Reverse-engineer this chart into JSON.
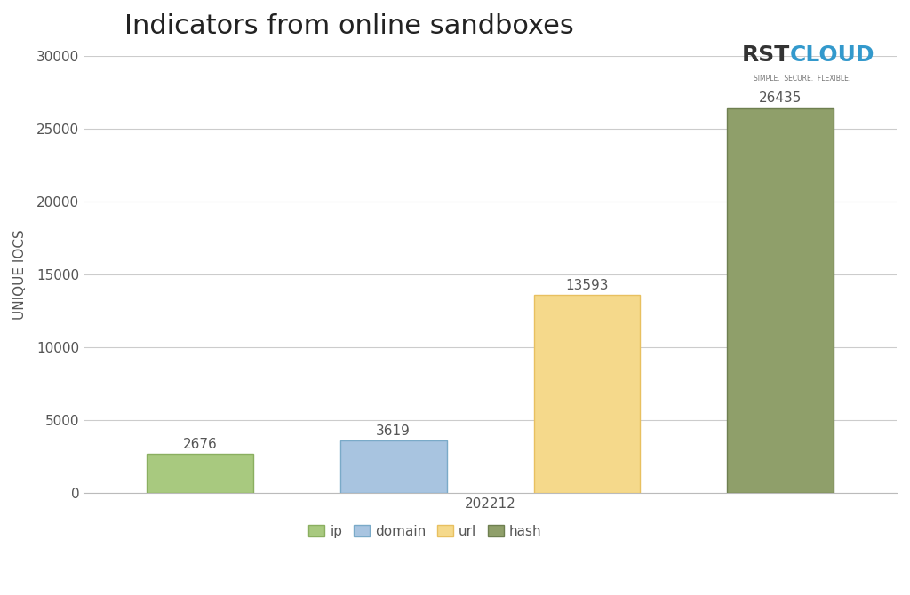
{
  "title": "Indicators from online sandboxes",
  "xlabel": "202212",
  "ylabel": "UNIQUE IOCS",
  "categories": [
    "ip",
    "domain",
    "url",
    "hash"
  ],
  "values": [
    2676,
    3619,
    13593,
    26435
  ],
  "bar_colors": [
    "#a8c97f",
    "#a8c4e0",
    "#f5d98b",
    "#8f9f6a"
  ],
  "bar_edge_colors": [
    "#8aaf60",
    "#7aaac8",
    "#e8c060",
    "#6e7f50"
  ],
  "value_labels": [
    "2676",
    "3619",
    "13593",
    "26435"
  ],
  "ylim": [
    0,
    30000
  ],
  "yticks": [
    0,
    5000,
    10000,
    15000,
    20000,
    25000,
    30000
  ],
  "background_color": "#ffffff",
  "grid_color": "#cccccc",
  "title_fontsize": 22,
  "label_fontsize": 11,
  "tick_fontsize": 11,
  "bar_value_fontsize": 11,
  "legend_labels": [
    "ip",
    "domain",
    "url",
    "hash"
  ],
  "legend_colors": [
    "#a8c97f",
    "#a8c4e0",
    "#f5d98b",
    "#8f9f6a"
  ],
  "legend_edge_colors": [
    "#8aaf60",
    "#7aaac8",
    "#e8c060",
    "#6e7f50"
  ],
  "rst_text": "RST",
  "cloud_text": "CLOUD",
  "tagline": "SIMPLE.  SECURE.  FLEXIBLE.",
  "rst_color": "#333333",
  "cloud_color": "#3399cc",
  "tagline_color": "#777777"
}
